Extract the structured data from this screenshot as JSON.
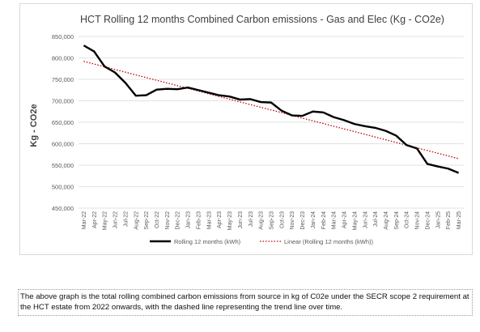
{
  "caption": "The above graph is the total rolling combined carbon emissions from source in kg of C02e under the SECR scope 2 requirement at the HCT estate from 2022 onwards, with the dashed line representing the trend line over time.",
  "chart_data": {
    "type": "line",
    "title": "HCT Rolling 12 months Combined Carbon emissions - Gas and Elec (Kg - CO2e)",
    "xlabel": "",
    "ylabel": "Kg - CO2e",
    "ylim": [
      450000,
      850000
    ],
    "yticks": [
      "450,000",
      "500,000",
      "550,000",
      "600,000",
      "650,000",
      "700,000",
      "750,000",
      "800,000",
      "850,000"
    ],
    "ytick_values": [
      450000,
      500000,
      550000,
      600000,
      650000,
      700000,
      750000,
      800000,
      850000
    ],
    "grid": true,
    "legend_position": "bottom",
    "categories": [
      "Mar-22",
      "Apr-22",
      "May-22",
      "Jun-22",
      "Jul-22",
      "Aug-22",
      "Sep-22",
      "Oct-22",
      "Nov-22",
      "Dec-22",
      "Jan-23",
      "Feb-23",
      "Mar-23",
      "Apr-23",
      "May-23",
      "Jun-23",
      "Jul-23",
      "Aug-23",
      "Sep-23",
      "Oct-23",
      "Nov-23",
      "Dec-23",
      "Jan-24",
      "Feb-24",
      "Mar-24",
      "Apr-24",
      "May-24",
      "Jun-24",
      "Jul-24",
      "Aug-24",
      "Sep-24",
      "Oct-24",
      "Nov-24",
      "Dec-24",
      "Jan-25",
      "Feb-25",
      "Mar-25"
    ],
    "series": [
      {
        "name": "Rolling 12 months (kWh)",
        "color": "#000000",
        "style": "solid",
        "values": [
          829000,
          815000,
          780000,
          766000,
          742000,
          712000,
          713000,
          726000,
          728000,
          727000,
          731000,
          725000,
          719000,
          713000,
          710000,
          703000,
          704000,
          697000,
          696000,
          677000,
          666000,
          665000,
          675000,
          673000,
          662000,
          655000,
          646000,
          641000,
          637000,
          630000,
          619000,
          597000,
          589000,
          553000,
          547000,
          542000,
          532000
        ]
      },
      {
        "name": "Linear (Rolling 12 months (kWh))",
        "color": "#c00000",
        "style": "dotted",
        "values": [
          792000,
          785700,
          779400,
          773100,
          766800,
          760500,
          754200,
          747900,
          741600,
          735300,
          729000,
          722700,
          716400,
          710100,
          703800,
          697500,
          691200,
          684900,
          678600,
          672300,
          666000,
          659700,
          653400,
          647100,
          640800,
          634500,
          628200,
          621900,
          615600,
          609300,
          603000,
          596700,
          590400,
          584100,
          577800,
          571500,
          565200
        ]
      }
    ]
  }
}
